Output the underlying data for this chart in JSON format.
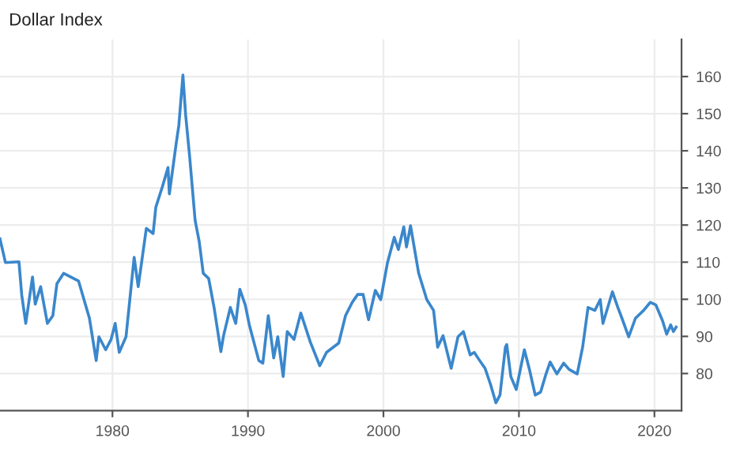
{
  "chart_data": {
    "type": "line",
    "title": "Dollar Index",
    "x": [
      1971.7,
      1972.1,
      1973.1,
      1973.3,
      1973.6,
      1974.1,
      1974.3,
      1974.7,
      1975.2,
      1975.6,
      1975.9,
      1976.4,
      1977.5,
      1977.9,
      1978.3,
      1978.8,
      1979.0,
      1979.5,
      1979.9,
      1980.2,
      1980.5,
      1981.0,
      1981.6,
      1981.9,
      1982.5,
      1983.0,
      1983.2,
      1983.7,
      1984.1,
      1984.2,
      1984.7,
      1984.9,
      1985.2,
      1985.4,
      1985.7,
      1986.1,
      1986.4,
      1986.7,
      1987.1,
      1987.5,
      1988.0,
      1988.2,
      1988.7,
      1989.1,
      1989.4,
      1989.8,
      1990.1,
      1990.8,
      1991.1,
      1991.5,
      1991.9,
      1992.2,
      1992.6,
      1992.9,
      1993.4,
      1993.9,
      1994.6,
      1995.3,
      1995.8,
      1996.7,
      1997.2,
      1997.7,
      1998.1,
      1998.5,
      1998.9,
      1999.4,
      1999.8,
      2000.3,
      2000.8,
      2001.1,
      2001.5,
      2001.7,
      2002.0,
      2002.6,
      2003.2,
      2003.7,
      2004.0,
      2004.4,
      2005.0,
      2005.5,
      2005.9,
      2006.4,
      2006.7,
      2007.1,
      2007.5,
      2007.9,
      2008.3,
      2008.6,
      2009.0,
      2009.1,
      2009.4,
      2009.8,
      2010.4,
      2010.8,
      2011.2,
      2011.6,
      2012.0,
      2012.3,
      2012.8,
      2013.3,
      2013.7,
      2014.3,
      2014.7,
      2015.1,
      2015.6,
      2016.0,
      2016.2,
      2016.9,
      2017.3,
      2017.6,
      2018.1,
      2018.6,
      2019.2,
      2019.7,
      2020.1,
      2020.6,
      2020.9,
      2021.2,
      2021.4,
      2021.6
    ],
    "series": [
      {
        "color": "#3a87cc",
        "values": [
          116.3,
          109.9,
          110.1,
          101.3,
          93.5,
          106,
          98.7,
          103.4,
          93.5,
          95.6,
          104.2,
          107,
          104.9,
          99.9,
          94.9,
          83.5,
          89.9,
          86.4,
          89.2,
          93.5,
          85.7,
          89.9,
          111.3,
          103.4,
          119.1,
          117.7,
          124.8,
          130.5,
          135.5,
          128.4,
          141.9,
          146.9,
          160.4,
          149.7,
          138.3,
          121.3,
          115.6,
          107,
          105.6,
          97.8,
          85.9,
          90.2,
          97.8,
          93.5,
          102.7,
          98.5,
          93.1,
          83.5,
          82.8,
          95.6,
          84.2,
          89.9,
          79.2,
          91.3,
          89.2,
          96.3,
          88.5,
          82.1,
          85.7,
          88.2,
          95.6,
          99.2,
          101.3,
          101.3,
          94.5,
          102.4,
          99.9,
          109.9,
          116.7,
          113.4,
          119.5,
          114.1,
          119.8,
          107,
          99.9,
          97,
          87.1,
          90.2,
          81.4,
          89.9,
          91.3,
          85,
          85.7,
          83.5,
          81.4,
          77.1,
          72.1,
          74.2,
          87.1,
          87.8,
          79.2,
          75.7,
          86.4,
          80.7,
          74.2,
          75,
          79.9,
          83.1,
          79.9,
          82.8,
          81.1,
          79.9,
          87.1,
          97.8,
          97,
          99.9,
          93.5,
          102,
          97.8,
          94.9,
          89.9,
          94.9,
          97,
          99.2,
          98.5,
          94.2,
          90.6,
          93.1,
          91.3,
          92.5
        ]
      }
    ],
    "xlim": [
      1971.7,
      2022.0
    ],
    "xticks": [
      1980,
      1990,
      2000,
      2010,
      2020
    ],
    "ylim": [
      70,
      170
    ],
    "yticks": [
      80,
      90,
      100,
      110,
      120,
      130,
      140,
      150,
      160
    ],
    "grid": true,
    "legend": false
  }
}
